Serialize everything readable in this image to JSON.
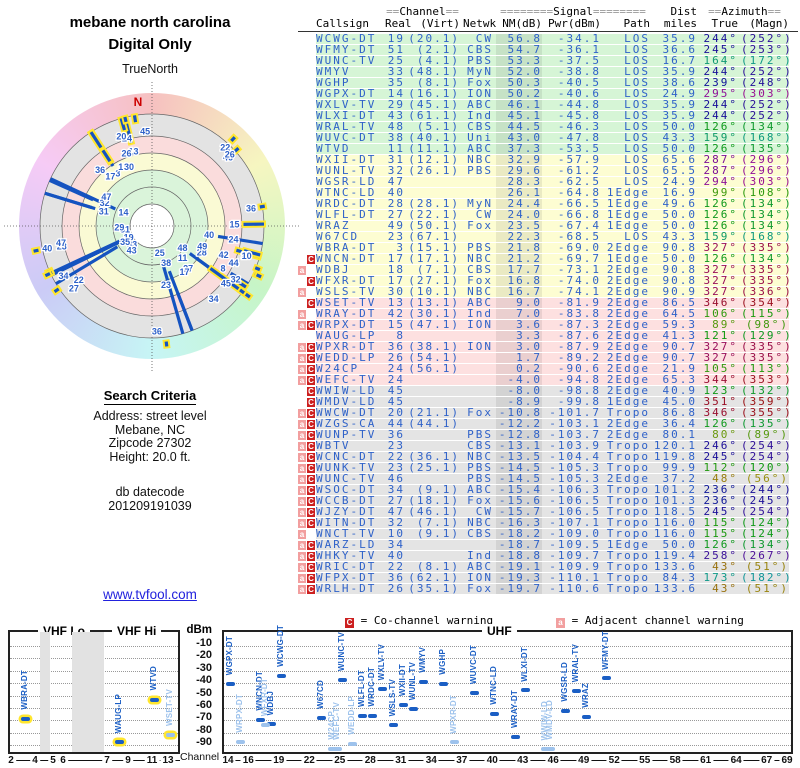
{
  "page_title": {
    "line1": "mebane north carolina",
    "line2": "Digital Only"
  },
  "radar": {
    "title": "TrueNorth",
    "north": "N"
  },
  "search": {
    "heading": "Search Criteria",
    "lines": [
      "Address: street level",
      "Mebane, NC",
      "Zipcode 27302",
      "Height: 20.0 ft."
    ],
    "db_lines": [
      "db datecode",
      "201209191039"
    ]
  },
  "link": {
    "label": "www.tvfool.com"
  },
  "colors": {
    "blue": "#2f62c9",
    "bar_dark": "#1a5ec4",
    "bar_dim": "#9dc2ec",
    "warn_co": "#cc2020",
    "warn_adj": "#f29f9f",
    "highlight": "#ffe62e"
  },
  "table": {
    "group_header": {
      "channel": "==Channel==",
      "signal": "========Signal========",
      "dist": "Dist",
      "azimuth": "==Azimuth=="
    },
    "columns": {
      "callsign": "Callsign",
      "real": "Real",
      "virt": "(Virt)",
      "netwk": "Netwk",
      "nm": "NM(dB)",
      "pwr": "Pwr(dBm)",
      "path": "Path",
      "miles": "miles",
      "true": "True",
      "magn": "(Magn)"
    },
    "rows": [
      {
        "w": "",
        "cs": "WCWG-DT",
        "real": 19,
        "virt": "(20.1)",
        "net": "CW",
        "nm": 56.8,
        "pwr": -34.1,
        "path": "LOS",
        "mi": 35.9,
        "t": 244,
        "m": 252,
        "band": "green",
        "dim": false
      },
      {
        "w": "",
        "cs": "WFMY-DT",
        "real": 51,
        "virt": "(2.1)",
        "net": "CBS",
        "nm": 54.7,
        "pwr": -36.1,
        "path": "LOS",
        "mi": 36.6,
        "t": 245,
        "m": 253,
        "band": "green",
        "dim": false
      },
      {
        "w": "",
        "cs": "WUNC-TV",
        "real": 25,
        "virt": "(4.1)",
        "net": "PBS",
        "nm": 53.3,
        "pwr": -37.5,
        "path": "LOS",
        "mi": 16.7,
        "t": 164,
        "m": 172,
        "band": "green",
        "dim": false
      },
      {
        "w": "",
        "cs": "WMYV",
        "real": 33,
        "virt": "(48.1)",
        "net": "MyN",
        "nm": 52.0,
        "pwr": -38.8,
        "path": "LOS",
        "mi": 35.9,
        "t": 244,
        "m": 252,
        "band": "green",
        "dim": false
      },
      {
        "w": "",
        "cs": "WGHP",
        "real": 35,
        "virt": "(8.1)",
        "net": "Fox",
        "nm": 50.3,
        "pwr": -40.5,
        "path": "LOS",
        "mi": 38.6,
        "t": 239,
        "m": 248,
        "band": "green",
        "dim": false
      },
      {
        "w": "",
        "cs": "WGPX-DT",
        "real": 14,
        "virt": "(16.1)",
        "net": "ION",
        "nm": 50.2,
        "pwr": -40.6,
        "path": "LOS",
        "mi": 24.9,
        "t": 295,
        "m": 303,
        "band": "green",
        "dim": false
      },
      {
        "w": "",
        "cs": "WXLV-TV",
        "real": 29,
        "virt": "(45.1)",
        "net": "ABC",
        "nm": 46.1,
        "pwr": -44.8,
        "path": "LOS",
        "mi": 35.9,
        "t": 244,
        "m": 252,
        "band": "green",
        "dim": false
      },
      {
        "w": "",
        "cs": "WLXI-DT",
        "real": 43,
        "virt": "(61.1)",
        "net": "Ind",
        "nm": 45.1,
        "pwr": -45.8,
        "path": "LOS",
        "mi": 35.9,
        "t": 244,
        "m": 252,
        "band": "green",
        "dim": false
      },
      {
        "w": "",
        "cs": "WRAL-TV",
        "real": 48,
        "virt": "(5.1)",
        "net": "CBS",
        "nm": 44.5,
        "pwr": -46.3,
        "path": "LOS",
        "mi": 50.0,
        "t": 126,
        "m": 134,
        "band": "green",
        "dim": false
      },
      {
        "w": "",
        "cs": "WUVC-DT",
        "real": 38,
        "virt": "(40.1)",
        "net": "Uni",
        "nm": 43.0,
        "pwr": -47.8,
        "path": "LOS",
        "mi": 43.3,
        "t": 159,
        "m": 168,
        "band": "green",
        "dim": false
      },
      {
        "w": "",
        "cs": "WTVD",
        "real": 11,
        "virt": "(11.1)",
        "net": "ABC",
        "nm": 37.3,
        "pwr": -53.5,
        "path": "LOS",
        "mi": 50.0,
        "t": 126,
        "m": 135,
        "band": "green",
        "dim": false
      },
      {
        "w": "",
        "cs": "WXII-DT",
        "real": 31,
        "virt": "(12.1)",
        "net": "NBC",
        "nm": 32.9,
        "pwr": -57.9,
        "path": "LOS",
        "mi": 65.6,
        "t": 287,
        "m": 296,
        "band": "yellow",
        "dim": false
      },
      {
        "w": "",
        "cs": "WUNL-TV",
        "real": 32,
        "virt": "(26.1)",
        "net": "PBS",
        "nm": 29.6,
        "pwr": -61.2,
        "path": "LOS",
        "mi": 65.5,
        "t": 287,
        "m": 296,
        "band": "yellow",
        "dim": false
      },
      {
        "w": "",
        "cs": "WGSR-LD",
        "real": 47,
        "virt": "",
        "net": "",
        "nm": 28.3,
        "pwr": -62.5,
        "path": "LOS",
        "mi": 24.9,
        "t": 294,
        "m": 303,
        "band": "yellow",
        "dim": false
      },
      {
        "w": "",
        "cs": "WTNC-LD",
        "real": 40,
        "virt": "",
        "net": "",
        "nm": 26.1,
        "pwr": -64.8,
        "path": "1Edge",
        "mi": 16.9,
        "t": 99,
        "m": 108,
        "band": "yellow",
        "dim": false
      },
      {
        "w": "",
        "cs": "WRDC-DT",
        "real": 28,
        "virt": "(28.1)",
        "net": "MyN",
        "nm": 24.4,
        "pwr": -66.5,
        "path": "1Edge",
        "mi": 49.6,
        "t": 126,
        "m": 134,
        "band": "yellow",
        "dim": false
      },
      {
        "w": "",
        "cs": "WLFL-DT",
        "real": 27,
        "virt": "(22.1)",
        "net": "CW",
        "nm": 24.0,
        "pwr": -66.8,
        "path": "1Edge",
        "mi": 50.0,
        "t": 126,
        "m": 134,
        "band": "yellow",
        "dim": false
      },
      {
        "w": "",
        "cs": "WRAZ",
        "real": 49,
        "virt": "(50.1)",
        "net": "Fox",
        "nm": 23.5,
        "pwr": -67.4,
        "path": "1Edge",
        "mi": 50.0,
        "t": 126,
        "m": 134,
        "band": "yellow",
        "dim": false
      },
      {
        "w": "",
        "cs": "W67CD",
        "real": 23,
        "virt": "(67.1)",
        "net": "",
        "nm": 22.3,
        "pwr": -68.5,
        "path": "LOS",
        "mi": 43.3,
        "t": 159,
        "m": 168,
        "band": "yellow",
        "dim": false
      },
      {
        "w": "",
        "cs": "WBRA-DT",
        "real": 3,
        "virt": "(15.1)",
        "net": "PBS",
        "nm": 21.8,
        "pwr": -69.0,
        "path": "2Edge",
        "mi": 90.8,
        "t": 327,
        "m": 335,
        "band": "yellow",
        "dim": false
      },
      {
        "w": "C",
        "cs": "WNCN-DT",
        "real": 17,
        "virt": "(17.1)",
        "net": "NBC",
        "nm": 21.2,
        "pwr": -69.7,
        "path": "1Edge",
        "mi": 50.0,
        "t": 126,
        "m": 134,
        "band": "yellow",
        "dim": false
      },
      {
        "w": "a",
        "cs": "WDBJ",
        "real": 18,
        "virt": "(7.1)",
        "net": "CBS",
        "nm": 17.7,
        "pwr": -73.1,
        "path": "2Edge",
        "mi": 90.8,
        "t": 327,
        "m": 335,
        "band": "yellow",
        "dim": false
      },
      {
        "w": "C",
        "cs": "WFXR-DT",
        "real": 17,
        "virt": "(27.1)",
        "net": "Fox",
        "nm": 16.8,
        "pwr": -74.0,
        "path": "2Edge",
        "mi": 90.8,
        "t": 327,
        "m": 335,
        "band": "yellow",
        "dim": true
      },
      {
        "w": "a",
        "cs": "WSLS-TV",
        "real": 30,
        "virt": "(10.1)",
        "net": "NBC",
        "nm": 16.7,
        "pwr": -74.1,
        "path": "2Edge",
        "mi": 90.9,
        "t": 327,
        "m": 336,
        "band": "yellow",
        "dim": false
      },
      {
        "w": "C",
        "cs": "WSET-TV",
        "real": 13,
        "virt": "(13.1)",
        "net": "ABC",
        "nm": 9.0,
        "pwr": -81.9,
        "path": "2Edge",
        "mi": 86.5,
        "t": 346,
        "m": 354,
        "band": "pink",
        "dim": true
      },
      {
        "w": "a",
        "cs": "WRAY-DT",
        "real": 42,
        "virt": "(30.1)",
        "net": "Ind",
        "nm": 7.0,
        "pwr": -83.8,
        "path": "2Edge",
        "mi": 64.5,
        "t": 106,
        "m": 115,
        "band": "pink",
        "dim": false
      },
      {
        "w": "aC",
        "cs": "WRPX-DT",
        "real": 15,
        "virt": "(47.1)",
        "net": "ION",
        "nm": 3.6,
        "pwr": -87.3,
        "path": "2Edge",
        "mi": 59.3,
        "t": 89,
        "m": 98,
        "band": "pink",
        "dim": true
      },
      {
        "w": "",
        "cs": "WAUG-LP",
        "real": 8,
        "virt": "",
        "net": "",
        "nm": 3.3,
        "pwr": -87.6,
        "path": "2Edge",
        "mi": 41.3,
        "t": 121,
        "m": 129,
        "band": "pink",
        "dim": false
      },
      {
        "w": "aC",
        "cs": "WPXR-DT",
        "real": 36,
        "virt": "(38.1)",
        "net": "ION",
        "nm": 3.0,
        "pwr": -87.9,
        "path": "2Edge",
        "mi": 90.7,
        "t": 327,
        "m": 335,
        "band": "pink",
        "dim": true
      },
      {
        "w": "aC",
        "cs": "WEDD-LP",
        "real": 26,
        "virt": "(54.1)",
        "net": "",
        "nm": 1.7,
        "pwr": -89.2,
        "path": "2Edge",
        "mi": 90.7,
        "t": 327,
        "m": 335,
        "band": "pink",
        "dim": true
      },
      {
        "w": "aC",
        "cs": "W24CP",
        "real": 24,
        "virt": "(56.1)",
        "net": "",
        "nm": 0.2,
        "pwr": -90.6,
        "path": "2Edge",
        "mi": 21.9,
        "t": 105,
        "m": 113,
        "band": "pink",
        "dim": true
      },
      {
        "w": "aC",
        "cs": "WEFC-TV",
        "real": 24,
        "virt": "",
        "net": "",
        "nm": -4.0,
        "pwr": -94.8,
        "path": "2Edge",
        "mi": 65.3,
        "t": 344,
        "m": 353,
        "band": "pink",
        "dim": true
      },
      {
        "w": "C",
        "cs": "WWIW-LD",
        "real": 45,
        "virt": "",
        "net": "",
        "nm": -8.0,
        "pwr": -98.8,
        "path": "2Edge",
        "mi": 40.9,
        "t": 123,
        "m": 132,
        "band": "gray",
        "dim": true
      },
      {
        "w": "C",
        "cs": "WMDV-LD",
        "real": 45,
        "virt": "",
        "net": "",
        "nm": -8.9,
        "pwr": -99.8,
        "path": "1Edge",
        "mi": 45.0,
        "t": 351,
        "m": 359,
        "band": "gray",
        "dim": true
      },
      {
        "w": "aC",
        "cs": "WWCW-DT",
        "real": 20,
        "virt": "(21.1)",
        "net": "Fox",
        "nm": -10.8,
        "pwr": -101.7,
        "path": "Tropo",
        "mi": 86.8,
        "t": 346,
        "m": 355,
        "band": "gray",
        "dim": true
      },
      {
        "w": "aC",
        "cs": "WZGS-CA",
        "real": 44,
        "virt": "(44.1)",
        "net": "",
        "nm": -12.2,
        "pwr": -103.1,
        "path": "2Edge",
        "mi": 36.4,
        "t": 126,
        "m": 135,
        "band": "gray",
        "dim": true
      },
      {
        "w": "aC",
        "cs": "WUNP-TV",
        "real": 36,
        "virt": "",
        "net": "PBS",
        "nm": -12.8,
        "pwr": -103.7,
        "path": "2Edge",
        "mi": 80.1,
        "t": 80,
        "m": 89,
        "band": "gray",
        "dim": true
      },
      {
        "w": "aC",
        "cs": "WBTV",
        "real": 23,
        "virt": "",
        "net": "CBS",
        "nm": -13.1,
        "pwr": -103.9,
        "path": "Tropo",
        "mi": 120.1,
        "t": 246,
        "m": 254,
        "band": "gray",
        "dim": true
      },
      {
        "w": "aC",
        "cs": "WCNC-DT",
        "real": 22,
        "virt": "(36.1)",
        "net": "NBC",
        "nm": -13.5,
        "pwr": -104.4,
        "path": "Tropo",
        "mi": 119.8,
        "t": 245,
        "m": 254,
        "band": "gray",
        "dim": true
      },
      {
        "w": "aC",
        "cs": "WUNK-TV",
        "real": 23,
        "virt": "(25.1)",
        "net": "PBS",
        "nm": -14.5,
        "pwr": -105.3,
        "path": "Tropo",
        "mi": 99.9,
        "t": 112,
        "m": 120,
        "band": "gray",
        "dim": true
      },
      {
        "w": "aC",
        "cs": "WUNC-TV",
        "real": 46,
        "virt": "",
        "net": "PBS",
        "nm": -14.5,
        "pwr": -105.3,
        "path": "2Edge",
        "mi": 37.2,
        "t": 48,
        "m": 56,
        "band": "gray",
        "dim": true
      },
      {
        "w": "aC",
        "cs": "WSOC-DT",
        "real": 34,
        "virt": "(9.1)",
        "net": "ABC",
        "nm": -15.4,
        "pwr": -106.3,
        "path": "Tropo",
        "mi": 101.2,
        "t": 236,
        "m": 244,
        "band": "gray",
        "dim": true
      },
      {
        "w": "aC",
        "cs": "WCCB-DT",
        "real": 27,
        "virt": "(18.1)",
        "net": "Fox",
        "nm": -15.6,
        "pwr": -106.5,
        "path": "Tropo",
        "mi": 101.3,
        "t": 236,
        "m": 245,
        "band": "gray",
        "dim": true
      },
      {
        "w": "aC",
        "cs": "WJZY-DT",
        "real": 47,
        "virt": "(46.1)",
        "net": "CW",
        "nm": -15.7,
        "pwr": -106.5,
        "path": "Tropo",
        "mi": 118.5,
        "t": 245,
        "m": 254,
        "band": "gray",
        "dim": true
      },
      {
        "w": "aC",
        "cs": "WITN-DT",
        "real": 32,
        "virt": "(7.1)",
        "net": "NBC",
        "nm": -16.3,
        "pwr": -107.1,
        "path": "Tropo",
        "mi": 116.0,
        "t": 115,
        "m": 124,
        "band": "gray",
        "dim": true
      },
      {
        "w": "a",
        "cs": "WNCT-TV",
        "real": 10,
        "virt": "(9.1)",
        "net": "CBS",
        "nm": -18.2,
        "pwr": -109.0,
        "path": "Tropo",
        "mi": 116.0,
        "t": 115,
        "m": 124,
        "band": "gray",
        "dim": true
      },
      {
        "w": "aC",
        "cs": "WARZ-LD",
        "real": 34,
        "virt": "",
        "net": "",
        "nm": -18.7,
        "pwr": -109.5,
        "path": "1Edge",
        "mi": 50.0,
        "t": 126,
        "m": 134,
        "band": "gray",
        "dim": true
      },
      {
        "w": "aC",
        "cs": "WHKY-TV",
        "real": 40,
        "virt": "",
        "net": "Ind",
        "nm": -18.8,
        "pwr": -109.7,
        "path": "Tropo",
        "mi": 119.4,
        "t": 258,
        "m": 267,
        "band": "gray",
        "dim": true
      },
      {
        "w": "aC",
        "cs": "WRIC-DT",
        "real": 22,
        "virt": "(8.1)",
        "net": "ABC",
        "nm": -19.1,
        "pwr": -109.9,
        "path": "Tropo",
        "mi": 133.6,
        "t": 43,
        "m": 51,
        "band": "gray",
        "dim": true
      },
      {
        "w": "aC",
        "cs": "WFPX-DT",
        "real": 36,
        "virt": "(62.1)",
        "net": "ION",
        "nm": -19.3,
        "pwr": -110.1,
        "path": "Tropo",
        "mi": 84.3,
        "t": 173,
        "m": 182,
        "band": "gray",
        "dim": true
      },
      {
        "w": "aC",
        "cs": "WRLH-DT",
        "real": 26,
        "virt": "(35.1)",
        "net": "Fox",
        "nm": -19.7,
        "pwr": -110.6,
        "path": "Tropo",
        "mi": 133.6,
        "t": 43,
        "m": 51,
        "band": "gray",
        "dim": true
      }
    ]
  },
  "legend": {
    "co_badge": "C",
    "co_text": "= Co-channel warning",
    "adj_badge": "a",
    "adj_text": "= Adjacent channel warning"
  },
  "band_chart": {
    "vhf_lo": "VHF Lo",
    "vhf_hi": "VHF Hi",
    "uhf": "UHF",
    "dbm": "dBm",
    "channel": "Channel",
    "dbm_ticks": [
      -10,
      -20,
      -30,
      -40,
      -50,
      -60,
      -70,
      -80,
      -90
    ],
    "vhf_ticks": [
      2,
      4,
      5,
      6,
      7,
      9,
      11,
      13
    ],
    "uhf_ticks": [
      14,
      16,
      19,
      22,
      25,
      28,
      31,
      34,
      37,
      40,
      43,
      46,
      49,
      52,
      55,
      58,
      61,
      64,
      67,
      69
    ]
  }
}
